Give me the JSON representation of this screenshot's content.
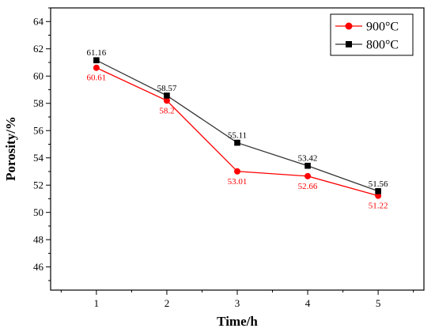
{
  "chart_data": {
    "type": "line",
    "xlabel": "Time/h",
    "ylabel": "Porosity/%",
    "x": [
      1,
      2,
      3,
      4,
      5
    ],
    "xlim": [
      0.35,
      5.65
    ],
    "ylim": [
      44.3,
      65
    ],
    "xticks": [
      1,
      2,
      3,
      4,
      5
    ],
    "yticks": [
      46,
      48,
      50,
      52,
      54,
      56,
      58,
      60,
      62,
      64
    ],
    "grid": false,
    "legend_position": "top-right",
    "series": [
      {
        "name": "900°C",
        "color": "#ff0000",
        "marker": "circle",
        "values": [
          60.61,
          58.2,
          53.01,
          52.66,
          51.22
        ],
        "labels": [
          "60.61",
          "58.2",
          "53.01",
          "52.66",
          "51.22"
        ]
      },
      {
        "name": "800°C",
        "color": "#000000",
        "line_color": "#333333",
        "marker": "square",
        "values": [
          61.16,
          58.57,
          55.11,
          53.42,
          51.56
        ],
        "labels": [
          "61.16",
          "58.57",
          "55.11",
          "53.42",
          "51.56"
        ]
      }
    ]
  }
}
